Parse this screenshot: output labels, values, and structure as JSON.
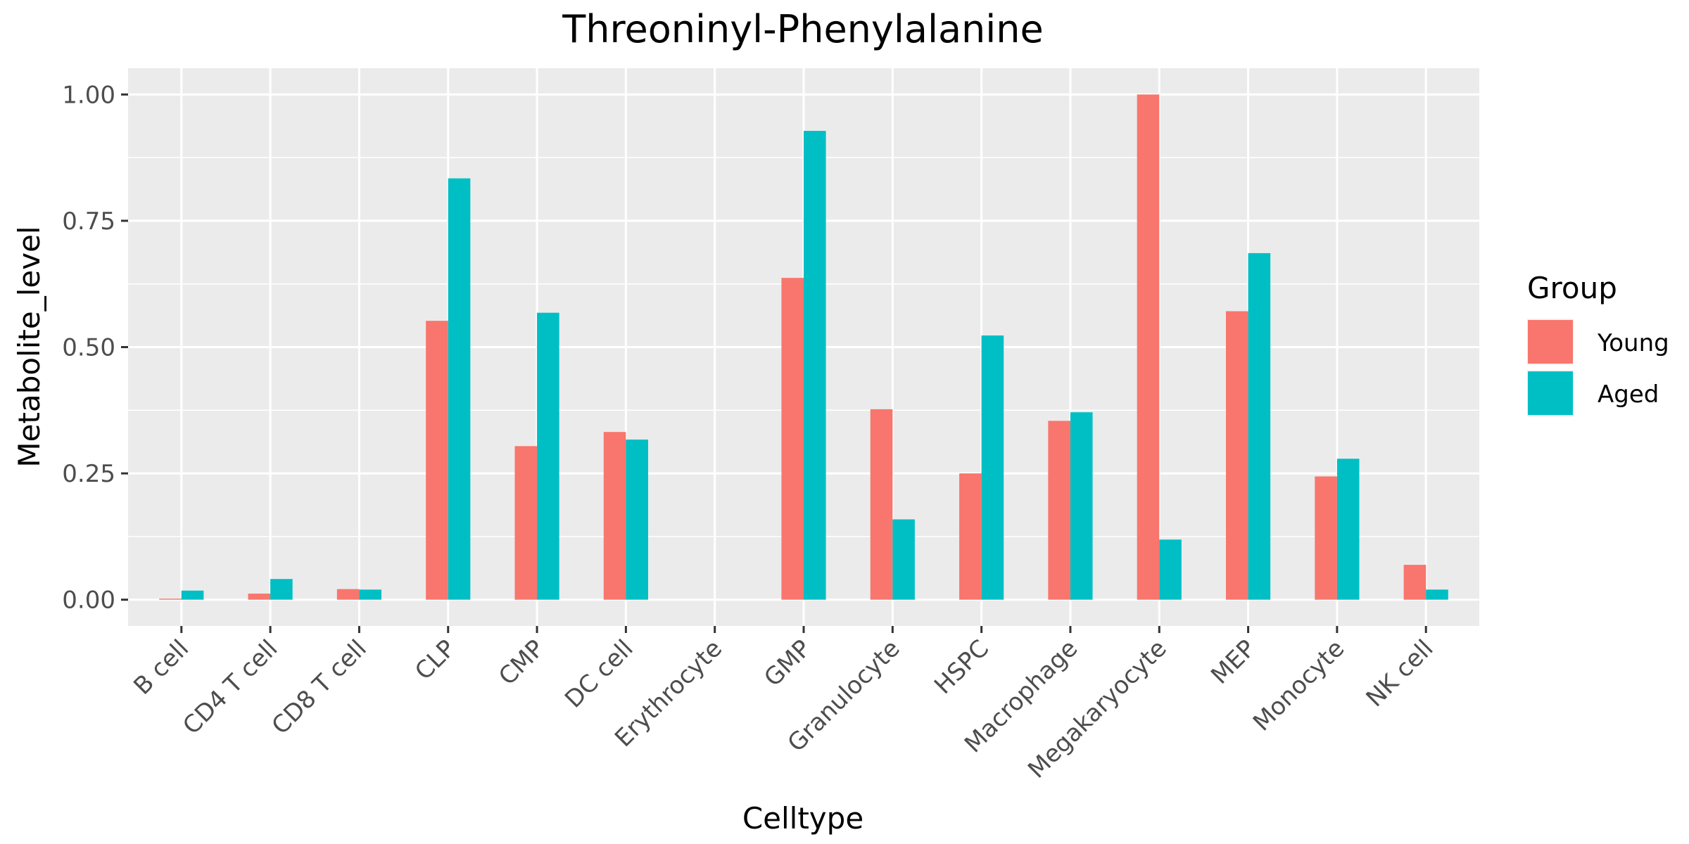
{
  "chart_data": {
    "type": "bar",
    "title": "Threoninyl-Phenylalanine",
    "xlabel": "Celltype",
    "ylabel": "Metabolite_level",
    "categories": [
      "B cell",
      "CD4 T cell",
      "CD8 T cell",
      "CLP",
      "CMP",
      "DC cell",
      "Erythrocyte",
      "GMP",
      "Granulocyte",
      "HSPC",
      "Macrophage",
      "Megakaryocyte",
      "MEP",
      "Monocyte",
      "NK cell"
    ],
    "series": [
      {
        "name": "Young",
        "color": "#F8766D",
        "values": [
          0.002,
          0.012,
          0.021,
          0.552,
          0.304,
          0.332,
          0.0,
          0.637,
          0.377,
          0.25,
          0.354,
          1.0,
          0.571,
          0.244,
          0.069
        ]
      },
      {
        "name": "Aged",
        "color": "#00BFC4",
        "values": [
          0.018,
          0.041,
          0.02,
          0.834,
          0.568,
          0.317,
          0.0,
          0.928,
          0.159,
          0.523,
          0.371,
          0.119,
          0.686,
          0.279,
          0.02
        ]
      }
    ],
    "ylim": [
      -0.052,
      1.052
    ],
    "yticks": [
      0.0,
      0.25,
      0.5,
      0.75,
      1.0
    ],
    "ytick_labels": [
      "0.00",
      "0.25",
      "0.50",
      "0.75",
      "1.00"
    ],
    "legend": {
      "title": "Group",
      "placement": "right"
    },
    "grid": true,
    "panel_background": "#EBEBEB"
  }
}
